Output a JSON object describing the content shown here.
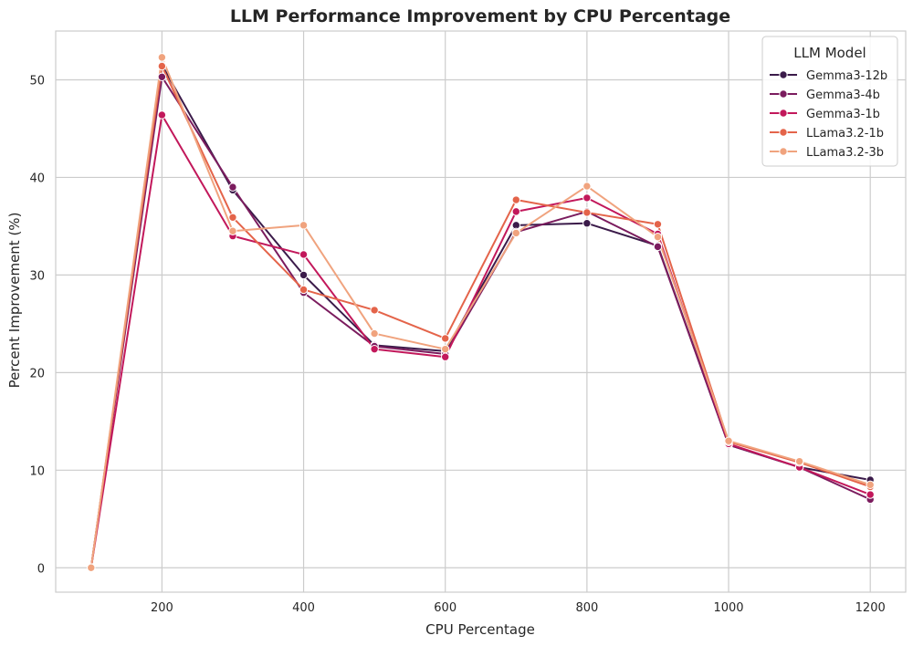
{
  "chart_data": {
    "type": "line",
    "title": "LLM Performance Improvement by CPU Percentage",
    "xlabel": "CPU Percentage",
    "ylabel": "Percent Improvement (%)",
    "xlim": [
      50,
      1250
    ],
    "ylim": [
      -2.5,
      55
    ],
    "xticks": [
      200,
      400,
      600,
      800,
      1000,
      1200
    ],
    "yticks": [
      0,
      10,
      20,
      30,
      40,
      50
    ],
    "grid": true,
    "legend": {
      "title": "LLM Model",
      "placement": "top-right"
    },
    "x": [
      100,
      200,
      300,
      400,
      500,
      600,
      700,
      800,
      900,
      1000,
      1100,
      1200
    ],
    "series": [
      {
        "name": "Gemma3-12b",
        "color": "#3b1b4a",
        "values": [
          0,
          51.5,
          38.7,
          30.0,
          22.8,
          22.2,
          35.1,
          35.3,
          33.0,
          12.6,
          10.3,
          9.0
        ]
      },
      {
        "name": "Gemma3-4b",
        "color": "#7b1c5e",
        "values": [
          0,
          50.3,
          39.0,
          28.2,
          22.7,
          21.9,
          34.4,
          36.5,
          32.9,
          12.6,
          10.3,
          7.0
        ]
      },
      {
        "name": "Gemma3-1b",
        "color": "#c2185b",
        "values": [
          0,
          46.4,
          34.0,
          32.1,
          22.4,
          21.6,
          36.5,
          37.9,
          34.2,
          12.7,
          10.3,
          7.5
        ]
      },
      {
        "name": "LLama3.2-1b",
        "color": "#e4644a",
        "values": [
          0,
          51.4,
          35.9,
          28.5,
          26.4,
          23.5,
          37.7,
          36.4,
          35.2,
          12.9,
          10.8,
          8.3
        ]
      },
      {
        "name": "LLama3.2-3b",
        "color": "#f0a37e",
        "values": [
          0,
          52.3,
          34.5,
          35.1,
          24.0,
          22.4,
          34.3,
          39.1,
          33.9,
          13.0,
          10.9,
          8.5
        ]
      }
    ]
  }
}
